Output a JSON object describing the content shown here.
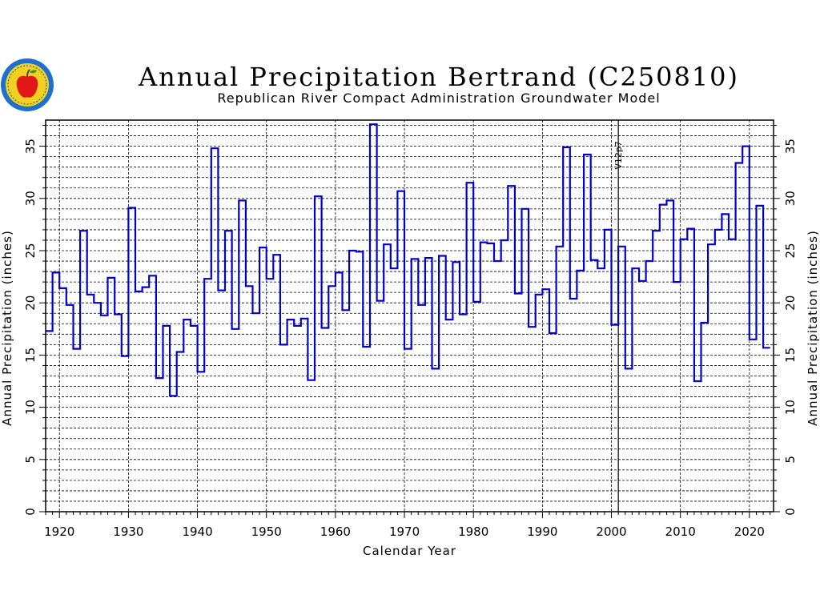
{
  "logo": {
    "name": "Republican River Compact Administration seal"
  },
  "chart_data": {
    "type": "line",
    "step": true,
    "title": "Annual Precipitation Bertrand (C250810)",
    "subtitle": "Republican River Compact Administration Groundwater Model",
    "xlabel": "Calendar Year",
    "ylabel_left": "Annual Precipitation (inches)",
    "ylabel_right": "Annual Precipitation (inches)",
    "xlim": [
      1918,
      2023.5
    ],
    "ylim": [
      0,
      37.5
    ],
    "x_ticks": [
      1920,
      1930,
      1940,
      1950,
      1960,
      1970,
      1980,
      1990,
      2000,
      2010,
      2020
    ],
    "y_ticks": [
      0,
      5,
      10,
      15,
      20,
      25,
      30,
      35
    ],
    "grid": true,
    "grid_y_step": 1,
    "annotation": {
      "x": 2001,
      "label": "V12p7"
    },
    "series_color": "#0000cc",
    "series": [
      {
        "x": [
          1918,
          1919,
          1920,
          1921,
          1922,
          1923,
          1924,
          1925,
          1926,
          1927,
          1928,
          1929,
          1930,
          1931,
          1932,
          1933,
          1934,
          1935,
          1936,
          1937,
          1938,
          1939,
          1940,
          1941,
          1942,
          1943,
          1944,
          1945,
          1946,
          1947,
          1948,
          1949,
          1950,
          1951,
          1952,
          1953,
          1954,
          1955,
          1956,
          1957,
          1958,
          1959,
          1960,
          1961,
          1962,
          1963,
          1964,
          1965,
          1966,
          1967,
          1968,
          1969,
          1970,
          1971,
          1972,
          1973,
          1974,
          1975,
          1976,
          1977,
          1978,
          1979,
          1980,
          1981,
          1982,
          1983,
          1984,
          1985,
          1986,
          1987,
          1988,
          1989,
          1990,
          1991,
          1992,
          1993,
          1994,
          1995,
          1996,
          1997,
          1998,
          1999,
          2000,
          2001,
          2002,
          2003,
          2004,
          2005,
          2006,
          2007,
          2008,
          2009,
          2010,
          2011,
          2012,
          2013,
          2014,
          2015,
          2016,
          2017,
          2018,
          2019,
          2020,
          2021,
          2022
        ],
        "y": [
          17.3,
          22.9,
          21.4,
          19.8,
          15.6,
          26.9,
          20.8,
          20.0,
          18.8,
          22.4,
          18.9,
          14.9,
          29.1,
          21.1,
          21.5,
          22.6,
          12.8,
          17.8,
          11.1,
          15.3,
          18.4,
          17.8,
          13.4,
          22.3,
          34.8,
          21.2,
          26.9,
          17.5,
          29.8,
          21.6,
          19.0,
          25.3,
          22.3,
          24.6,
          16.0,
          18.4,
          17.8,
          18.5,
          12.6,
          30.2,
          17.6,
          21.6,
          22.9,
          19.3,
          25.0,
          24.9,
          15.8,
          37.1,
          20.2,
          25.6,
          23.3,
          30.7,
          15.6,
          24.2,
          19.8,
          24.3,
          13.7,
          24.5,
          18.4,
          23.9,
          18.9,
          31.5,
          20.1,
          25.8,
          25.7,
          24.0,
          26.0,
          31.2,
          20.9,
          29.0,
          17.7,
          20.8,
          21.3,
          17.1,
          25.4,
          34.9,
          20.4,
          23.1,
          34.2,
          24.1,
          23.3,
          27.0,
          17.9,
          25.4,
          13.7,
          23.3,
          22.1,
          24.0,
          26.9,
          29.4,
          29.8,
          22.0,
          26.1,
          27.1,
          12.5,
          18.1,
          25.6,
          27.0,
          28.5,
          26.1,
          33.4,
          35.0,
          16.5,
          29.3,
          15.7
        ]
      }
    ]
  }
}
